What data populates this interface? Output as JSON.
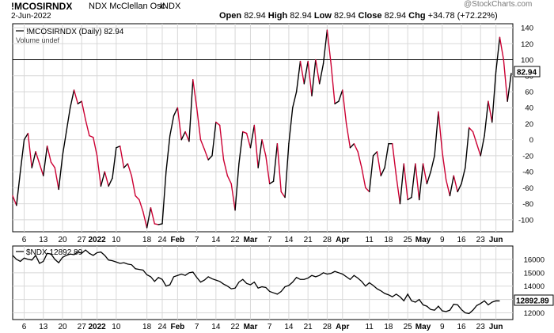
{
  "header": {
    "symbol": "!MCOSIRNDX",
    "name": "NDX McClellan Osc",
    "exchange": "INDX",
    "date": "2-Jun-2022",
    "open_label": "Open",
    "open": "82.94",
    "high_label": "High",
    "high": "82.94",
    "low_label": "Low",
    "low": "82.94",
    "close_label": "Close",
    "close": "82.94",
    "chg_label": "Chg",
    "chg": "+34.78 (+72.22%)",
    "watermark": "@StockCharts.com"
  },
  "colors": {
    "up": "#000000",
    "down": "#cc0033",
    "grid": "#d8d8d8",
    "line": "#000000"
  },
  "x_axis": {
    "labels": [
      "6",
      "13",
      "20",
      "27",
      "2022",
      "10",
      "18",
      "24",
      "Feb",
      "7",
      "14",
      "22",
      "Mar",
      "7",
      "14",
      "21",
      "28",
      "Apr",
      "11",
      "18",
      "25",
      "May",
      "9",
      "16",
      "23",
      "Jun"
    ],
    "bold": [
      "2022",
      "Feb",
      "Mar",
      "Apr",
      "May",
      "Jun"
    ],
    "label_index": [
      3,
      8,
      13,
      18,
      22,
      27,
      35,
      39,
      43,
      48,
      53,
      58,
      62,
      67,
      72,
      77,
      82,
      86,
      93,
      98,
      103,
      107,
      112,
      117,
      122,
      126
    ]
  },
  "chart_data": [
    {
      "type": "line",
      "legend": "!MCOSIRNDX (Daily) 82.94",
      "legend_note": "Volume undef",
      "last_value_label": "82.94",
      "ylim": [
        -115,
        145
      ],
      "yticks": [
        -100,
        -80,
        -60,
        -40,
        -20,
        0,
        20,
        40,
        60,
        80,
        100,
        120,
        140
      ],
      "reference_line": 100,
      "grid": true,
      "series": [
        {
          "values": [
            -70,
            -82,
            -40,
            0,
            8,
            -35,
            -15,
            -30,
            -45,
            -8,
            -28,
            -35,
            -62,
            -20,
            10,
            40,
            62,
            45,
            48,
            25,
            5,
            3,
            -20,
            -58,
            -40,
            -58,
            -48,
            -10,
            -8,
            -35,
            -30,
            -45,
            -70,
            -75,
            -90,
            -110,
            -85,
            -105,
            -106,
            -105,
            -40,
            5,
            30,
            40,
            0,
            10,
            -2,
            75,
            40,
            0,
            -12,
            -25,
            -20,
            22,
            18,
            -25,
            -45,
            -55,
            -88,
            -30,
            10,
            8,
            -10,
            18,
            -35,
            0,
            -20,
            -55,
            -52,
            -5,
            -65,
            -72,
            -5,
            40,
            60,
            98,
            70,
            98,
            55,
            100,
            70,
            95,
            137,
            95,
            45,
            48,
            62,
            20,
            -10,
            -5,
            -15,
            -35,
            -60,
            -65,
            -20,
            -15,
            -45,
            -35,
            -5,
            -5,
            -45,
            -80,
            -30,
            -75,
            -72,
            -30,
            -75,
            -30,
            -55,
            -40,
            -20,
            35,
            -15,
            -50,
            -70,
            -45,
            -65,
            -55,
            -35,
            15,
            10,
            -5,
            -20,
            5,
            48,
            22,
            85,
            128,
            100,
            48,
            82.94
          ]
        }
      ]
    },
    {
      "type": "line",
      "legend": "$NDX 12892.89",
      "last_value_label": "12892.89",
      "ylim": [
        11500,
        17000
      ],
      "yticks": [
        12000,
        13000,
        14000,
        15000,
        16000
      ],
      "grid": true,
      "series": [
        {
          "values": [
            16300,
            16000,
            15850,
            16100,
            16000,
            15950,
            16300,
            15700,
            15850,
            16450,
            16400,
            16000,
            15750,
            16150,
            16300,
            16400,
            16350,
            16550,
            16450,
            16700,
            16450,
            16300,
            16500,
            16550,
            16300,
            15950,
            15900,
            15800,
            15700,
            15750,
            15650,
            15600,
            15300,
            15250,
            15200,
            14850,
            14700,
            14350,
            14650,
            14500,
            14000,
            14100,
            14700,
            14800,
            14900,
            14800,
            15000,
            15050,
            14650,
            14300,
            14450,
            14700,
            14550,
            14450,
            14350,
            14150,
            14000,
            13800,
            13850,
            14300,
            14500,
            14200,
            14100,
            14300,
            13850,
            13950,
            13900,
            13600,
            13500,
            13400,
            13600,
            13950,
            14050,
            14300,
            14650,
            14500,
            14500,
            14600,
            14800,
            14700,
            14800,
            15000,
            14900,
            14950,
            15100,
            15000,
            14900,
            14700,
            14500,
            14800,
            14600,
            14350,
            14000,
            14250,
            14050,
            13800,
            13650,
            13450,
            13350,
            13200,
            13400,
            13200,
            12900,
            13400,
            12900,
            12800,
            13000,
            12600,
            12500,
            12250,
            12200,
            12500,
            12150,
            12100,
            12200,
            12650,
            12600,
            12250,
            12000,
            11950,
            12200,
            12550,
            12700,
            12900,
            12600,
            12800,
            12900,
            12892.89
          ]
        }
      ]
    }
  ]
}
